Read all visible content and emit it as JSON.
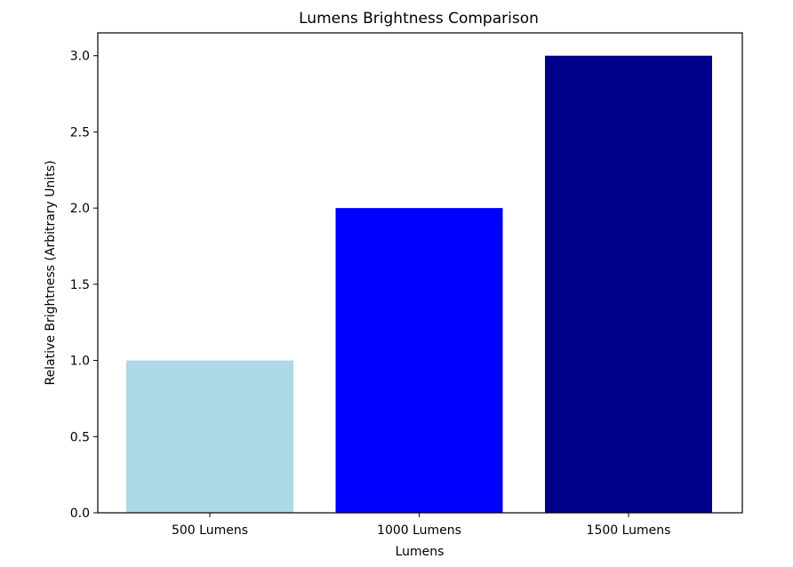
{
  "chart_data": {
    "type": "bar",
    "title": "Lumens Brightness Comparison",
    "xlabel": "Lumens",
    "ylabel": "Relative Brightness (Arbitrary Units)",
    "categories": [
      "500 Lumens",
      "1000 Lumens",
      "1500 Lumens"
    ],
    "values": [
      1,
      2,
      3
    ],
    "colors": [
      "#add8e6",
      "#0000ff",
      "#00008b"
    ],
    "ylim": [
      0,
      3.15
    ],
    "yticks": [
      0.0,
      0.5,
      1.0,
      1.5,
      2.0,
      2.5,
      3.0
    ],
    "ytick_labels": [
      "0.0",
      "0.5",
      "1.0",
      "1.5",
      "2.0",
      "2.5",
      "3.0"
    ],
    "grid": false,
    "legend": "none"
  }
}
